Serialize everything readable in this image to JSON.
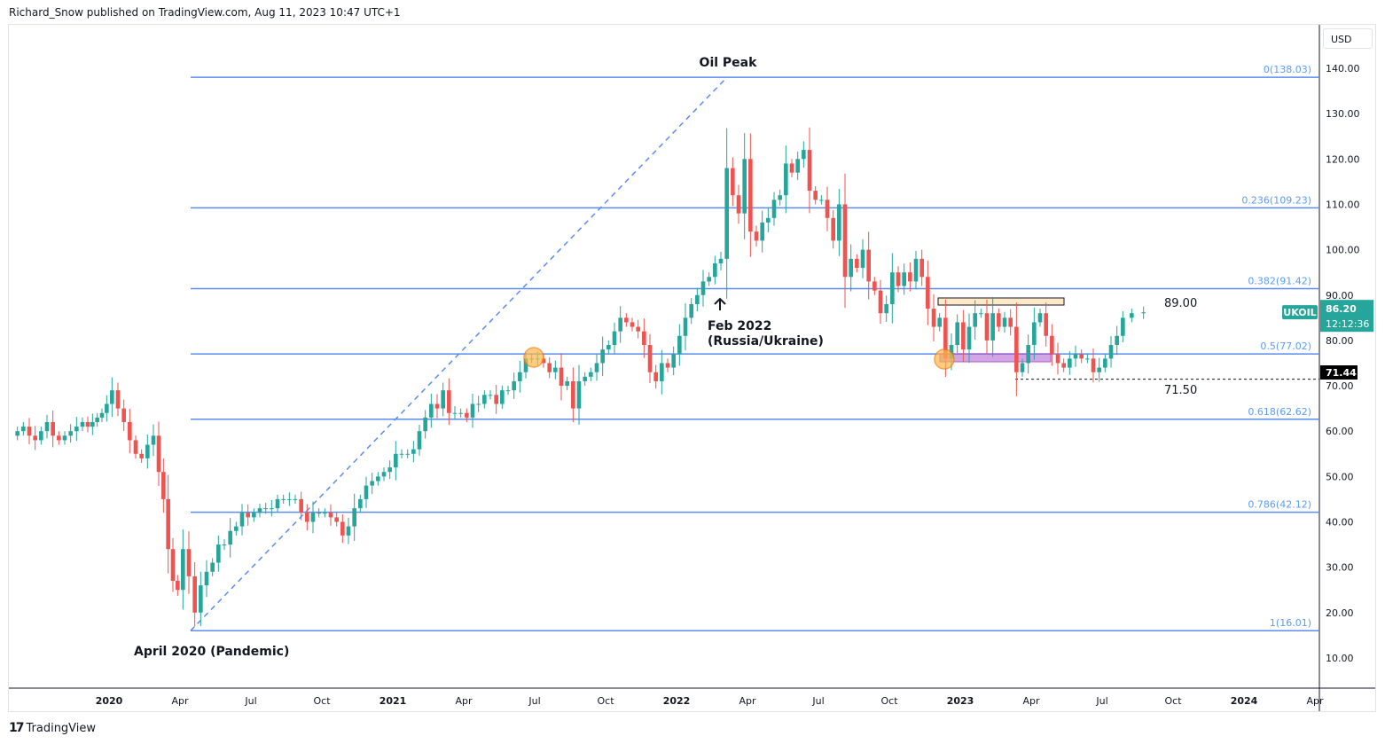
{
  "header": "Richard_Snow published on TradingView.com, Aug 11, 2023 10:47 UTC+1",
  "currency": "USD",
  "brand": "TradingView",
  "colors": {
    "up": "#26a69a",
    "down": "#ef5350",
    "fib": "#5b8def",
    "fib_label": "#5b9cf6"
  },
  "chart_data": {
    "type": "candlestick",
    "symbol": "UKOIL",
    "last_price": "86.20",
    "countdown": "12:12:36",
    "marked_price": "71.44",
    "ylim": [
      5,
      145
    ],
    "y_ticks": [
      10,
      20,
      30,
      40,
      50,
      60,
      70,
      80,
      90,
      100,
      110,
      120,
      130,
      140
    ],
    "y_tick_labels": [
      "10.00",
      "20.00",
      "30.00",
      "40.00",
      "50.00",
      "60.00",
      "70.00",
      "80.00",
      "90.00",
      "100.00",
      "110.00",
      "120.00",
      "130.00",
      "140.00"
    ],
    "x_ticks": [
      {
        "m": 0,
        "label": "2020"
      },
      {
        "m": 3,
        "label": "Apr"
      },
      {
        "m": 6,
        "label": "Jul"
      },
      {
        "m": 9,
        "label": "Oct"
      },
      {
        "m": 12,
        "label": "2021"
      },
      {
        "m": 15,
        "label": "Apr"
      },
      {
        "m": 18,
        "label": "Jul"
      },
      {
        "m": 21,
        "label": "Oct"
      },
      {
        "m": 24,
        "label": "2022"
      },
      {
        "m": 27,
        "label": "Apr"
      },
      {
        "m": 30,
        "label": "Jul"
      },
      {
        "m": 33,
        "label": "Oct"
      },
      {
        "m": 36,
        "label": "2023"
      },
      {
        "m": 39,
        "label": "Apr"
      },
      {
        "m": 42,
        "label": "Jul"
      },
      {
        "m": 45,
        "label": "Oct"
      },
      {
        "m": 48,
        "label": "2024"
      },
      {
        "m": 51,
        "label": "Apr"
      }
    ],
    "start_month": -4,
    "start_price": 59,
    "monthly_weekly_closes": [
      [
        60,
        61,
        59,
        58
      ],
      [
        60,
        62,
        59,
        58
      ],
      [
        59,
        60,
        61,
        62
      ],
      [
        61,
        62,
        63,
        64,
        66
      ],
      [
        69,
        65,
        62,
        58
      ],
      [
        55,
        54,
        57,
        59
      ],
      [
        51,
        45,
        34,
        27,
        25
      ],
      [
        34,
        28,
        20,
        26
      ],
      [
        29,
        31,
        35,
        35
      ],
      [
        38,
        39,
        42,
        41
      ],
      [
        42,
        43,
        43,
        43
      ],
      [
        45,
        45,
        45,
        45
      ],
      [
        42,
        40,
        42,
        42
      ],
      [
        42,
        41,
        40,
        37
      ],
      [
        39,
        43,
        45,
        48
      ],
      [
        49,
        50,
        51,
        52
      ],
      [
        55,
        55,
        55,
        56
      ],
      [
        60,
        63,
        66,
        65
      ],
      [
        69,
        64,
        64,
        64
      ],
      [
        63,
        66,
        66,
        68
      ],
      [
        68,
        66,
        69,
        69
      ],
      [
        71,
        73,
        76,
        76
      ],
      [
        76,
        75,
        73,
        74
      ],
      [
        70,
        71,
        65,
        71
      ],
      [
        72,
        73,
        75,
        78
      ],
      [
        79,
        82,
        85,
        84
      ],
      [
        83,
        82,
        79,
        73
      ],
      [
        71,
        75,
        74,
        77
      ],
      [
        81,
        85,
        88,
        90
      ],
      [
        93,
        94,
        97,
        98
      ],
      [
        118,
        112,
        108,
        120
      ],
      [
        104,
        102,
        106,
        107
      ],
      [
        111,
        112,
        119,
        117
      ],
      [
        120,
        122,
        113,
        111
      ],
      [
        111,
        107,
        102,
        110
      ],
      [
        94,
        98,
        96,
        100
      ],
      [
        93,
        91,
        86,
        88
      ],
      [
        95,
        92,
        95,
        93
      ],
      [
        98,
        94,
        87,
        83
      ],
      [
        85,
        76,
        79,
        84
      ],
      [
        78,
        83,
        86,
        86
      ],
      [
        80,
        86,
        83,
        85
      ],
      [
        83,
        73,
        75,
        79
      ],
      [
        84,
        86,
        81,
        77
      ],
      [
        75,
        74,
        76,
        77
      ],
      [
        76,
        76,
        73,
        74
      ],
      [
        76,
        79,
        81,
        85
      ],
      [
        86,
        86.2
      ]
    ],
    "fib_levels": [
      {
        "price": 138.03,
        "label": "0(138.03)"
      },
      {
        "price": 109.23,
        "label": "0.236(109.23)"
      },
      {
        "price": 91.42,
        "label": "0.382(91.42)"
      },
      {
        "price": 77.02,
        "label": "0.5(77.02)"
      },
      {
        "price": 62.62,
        "label": "0.618(62.62)"
      },
      {
        "price": 42.12,
        "label": "0.786(42.12)"
      },
      {
        "price": 16.01,
        "label": "1(16.01)"
      }
    ],
    "annotations": {
      "peak": "Oil Peak",
      "feb_line1": "Feb 2022",
      "feb_line2": "(Russia/Ukraine)",
      "april": "April 2020 (Pandemic)",
      "resistance": "89.00",
      "support": "71.50"
    }
  }
}
